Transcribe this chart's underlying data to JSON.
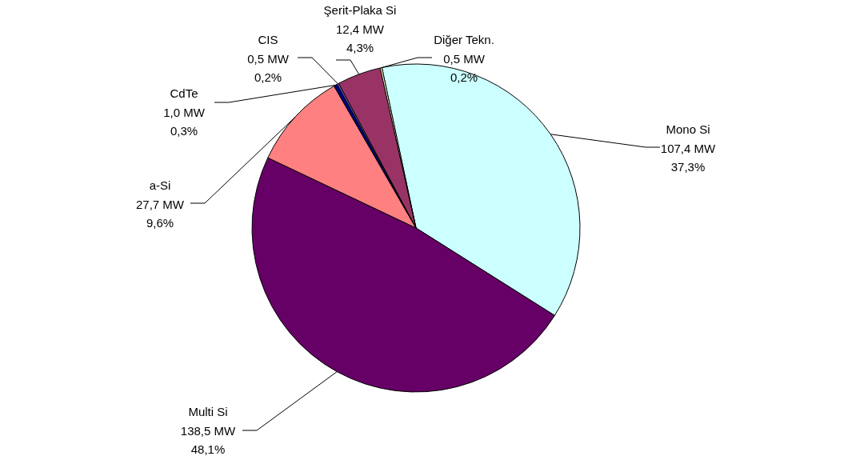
{
  "chart_data": {
    "type": "pie",
    "categories": [
      "Mono Si",
      "Multi Si",
      "a-Si",
      "CdTe",
      "CIS",
      "Şerit-Plaka Si",
      "Diğer Tekn."
    ],
    "values": [
      107.4,
      138.5,
      27.7,
      1.0,
      0.5,
      12.4,
      0.5
    ],
    "value_labels": [
      "107,4 MW\n37,3%",
      "138,5 MW\n48,1%",
      "27,7 MW\n9,6%",
      "1,0 MW\n0,3%",
      "0,5 MW\n0,2%",
      "12,4 MW\n4,3%",
      "0,5 MW\n0,2%"
    ],
    "colors": [
      "#ccffff",
      "#660066",
      "#ff8080",
      "#000080",
      "#6666cc",
      "#993366",
      "#ffffcc"
    ]
  }
}
